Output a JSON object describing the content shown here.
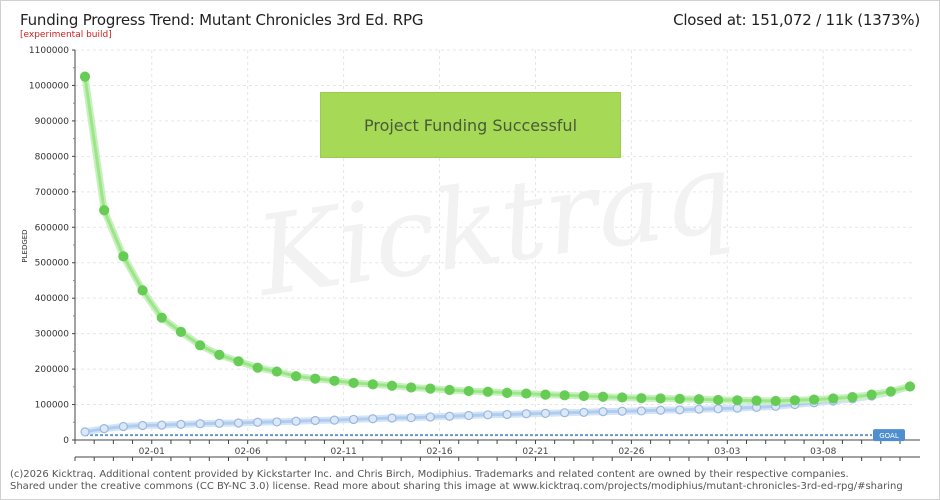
{
  "header": {
    "title": "Funding Progress Trend: Mutant Chronicles 3rd Ed. RPG",
    "badge": "[experimental build]",
    "closed_text": "Closed at:  151,072 / 11k (1373%)"
  },
  "banner": {
    "text": "Project Funding Successful"
  },
  "watermark": {
    "text": "Kicktraq"
  },
  "footer": {
    "line1": "(c)2026 Kicktraq. Additional content provided by Kickstarter Inc. and Chris Birch, Modiphius. Trademarks and related content are owned by their respective companies.",
    "line2": "Shared under the creative commons (CC BY-NC 3.0) license. Read more about sharing this image at www.kicktraq.com/projects/modiphius/mutant-chronicles-3rd-ed-rpg/#sharing"
  },
  "chart_data": {
    "type": "line",
    "ylabel": "PLEDGED",
    "ylim": [
      0,
      1100000
    ],
    "yticks": [
      0,
      100000,
      200000,
      300000,
      400000,
      500000,
      600000,
      700000,
      800000,
      900000,
      1000000,
      1100000
    ],
    "xlabels": [
      "02-01",
      "02-06",
      "02-11",
      "02-16",
      "02-21",
      "02-26",
      "03-03",
      "03-08"
    ],
    "goal": {
      "label": "GOAL",
      "value": 11000
    },
    "grid": true,
    "series": [
      {
        "color": "#66cc55",
        "values": [
          1025000,
          648000,
          518000,
          422000,
          345000,
          305000,
          267000,
          240000,
          222000,
          204000,
          193000,
          180000,
          173000,
          167000,
          161000,
          157000,
          153000,
          148000,
          145000,
          141000,
          138000,
          136000,
          133000,
          131000,
          128000,
          126000,
          124000,
          122000,
          120000,
          118000,
          117000,
          116000,
          115000,
          113000,
          112000,
          111000,
          110000,
          112000,
          114000,
          117000,
          121000,
          128000,
          137000,
          151000
        ]
      },
      {
        "color": "#88aadd",
        "values": [
          23000,
          32000,
          38000,
          41000,
          42000,
          44000,
          46000,
          47000,
          48000,
          50000,
          51000,
          53000,
          55000,
          56000,
          58000,
          60000,
          62000,
          63000,
          65000,
          67000,
          69000,
          71000,
          72000,
          74000,
          75000,
          77000,
          78000,
          80000,
          81000,
          82000,
          84000,
          85000,
          87000,
          88000,
          90000,
          92000,
          95000,
          100000,
          105000,
          110000,
          116000,
          124000,
          135000,
          151000
        ]
      }
    ]
  }
}
